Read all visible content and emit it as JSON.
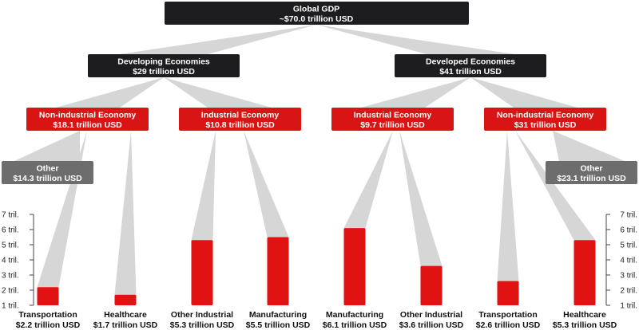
{
  "colors": {
    "dark": "#1d1d1f",
    "red": "#d81414",
    "gray": "#6d6d6d",
    "beam": "#d6d6d6",
    "bar": "#e01212"
  },
  "root": {
    "title": "Global GDP",
    "value": "~$70.0 trillion USD"
  },
  "economies": [
    {
      "title": "Developing Economies",
      "value": "$29 trillion USD"
    },
    {
      "title": "Developed Economies",
      "value": "$41 trillion USD"
    }
  ],
  "sectors": [
    {
      "title": "Non-industrial Economy",
      "value": "$18.1 trillion USD"
    },
    {
      "title": "Industrial Economy",
      "value": "$10.8 trillion USD"
    },
    {
      "title": "Industrial Economy",
      "value": "$9.7 trillion USD"
    },
    {
      "title": "Non-industrial Economy",
      "value": "$31 trillion USD"
    }
  ],
  "others": [
    {
      "title": "Other",
      "value": "$14.3 trillion USD"
    },
    {
      "title": "Other",
      "value": "$23.1 trillion USD"
    }
  ],
  "chart_data": {
    "type": "bar",
    "categories": [
      "Transportation",
      "Healthcare",
      "Other Industrial",
      "Manufacturing",
      "Manufacturing",
      "Other Industrial",
      "Transportation",
      "Healthcare"
    ],
    "value_labels": [
      "$2.2 trillion USD",
      "$1.7 trillion USD",
      "$5.3 trillion USD",
      "$5.5 trillion USD",
      "$6.1 trillion USD",
      "$3.6 trillion USD",
      "$2.6 trillion USD",
      "$5.3 trillion USD"
    ],
    "values": [
      2.2,
      1.7,
      5.3,
      5.5,
      6.1,
      3.6,
      2.6,
      5.3
    ],
    "y_ticks": [
      "1 tril.",
      "2 tril.",
      "3 tril.",
      "4 tril.",
      "5 tril.",
      "6 tril.",
      "7 tril."
    ],
    "ylim": [
      1,
      7
    ],
    "grid": false
  }
}
